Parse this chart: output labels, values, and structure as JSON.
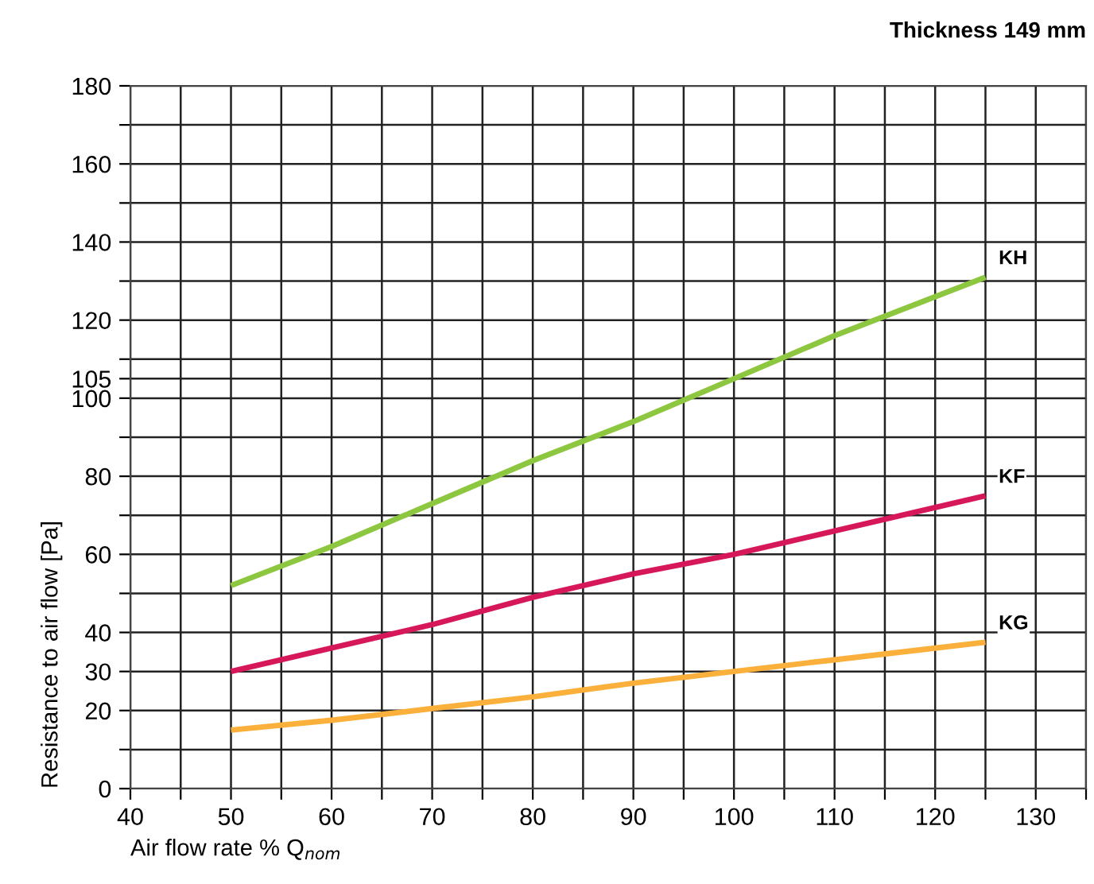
{
  "chart_data": {
    "type": "line",
    "title": "Thickness 149 mm",
    "xlabel": "Air flow rate % Q$_{nom}$",
    "ylabel": "Resistance to air flow [Pa]",
    "x": [
      50,
      60,
      70,
      80,
      90,
      100,
      110,
      120,
      125
    ],
    "series": [
      {
        "name": "KH",
        "color": "#8dc63f",
        "values": [
          52,
          62,
          73,
          84,
          94,
          105,
          116,
          126,
          131
        ]
      },
      {
        "name": "KF",
        "color": "#d6175a",
        "values": [
          30,
          36,
          42,
          49,
          55,
          60,
          66,
          72,
          75
        ]
      },
      {
        "name": "KG",
        "color": "#fbb03b",
        "values": [
          15,
          17.5,
          20.5,
          23.5,
          27,
          30,
          33,
          36,
          37.5
        ]
      }
    ],
    "xlim": [
      40,
      135
    ],
    "xticks": [
      40,
      {
        "value": 45,
        "label": null
      },
      50,
      {
        "value": 55,
        "label": null
      },
      60,
      {
        "value": 65,
        "label": null
      },
      70,
      {
        "value": 75,
        "label": null
      },
      80,
      {
        "value": 85,
        "label": null
      },
      90,
      {
        "value": 95,
        "label": null
      },
      100,
      {
        "value": 105,
        "label": null
      },
      110,
      {
        "value": 115,
        "label": null
      },
      120,
      {
        "value": 125,
        "label": null
      },
      130,
      {
        "value": 135,
        "label": null
      }
    ],
    "ylim": [
      0,
      180
    ],
    "yticks": [
      0,
      {
        "value": 10,
        "label": null
      },
      20,
      30,
      40,
      {
        "value": 50,
        "label": null
      },
      60,
      {
        "value": 70,
        "label": null
      },
      80,
      {
        "value": 90,
        "label": null
      },
      100,
      105,
      {
        "value": 110,
        "label": null
      },
      120,
      {
        "value": 130,
        "label": null
      },
      140,
      {
        "value": 150,
        "label": null
      },
      160,
      {
        "value": 170,
        "label": null
      },
      180
    ],
    "grid": true,
    "line_style": "solid",
    "marker": "none",
    "legend": false
  }
}
